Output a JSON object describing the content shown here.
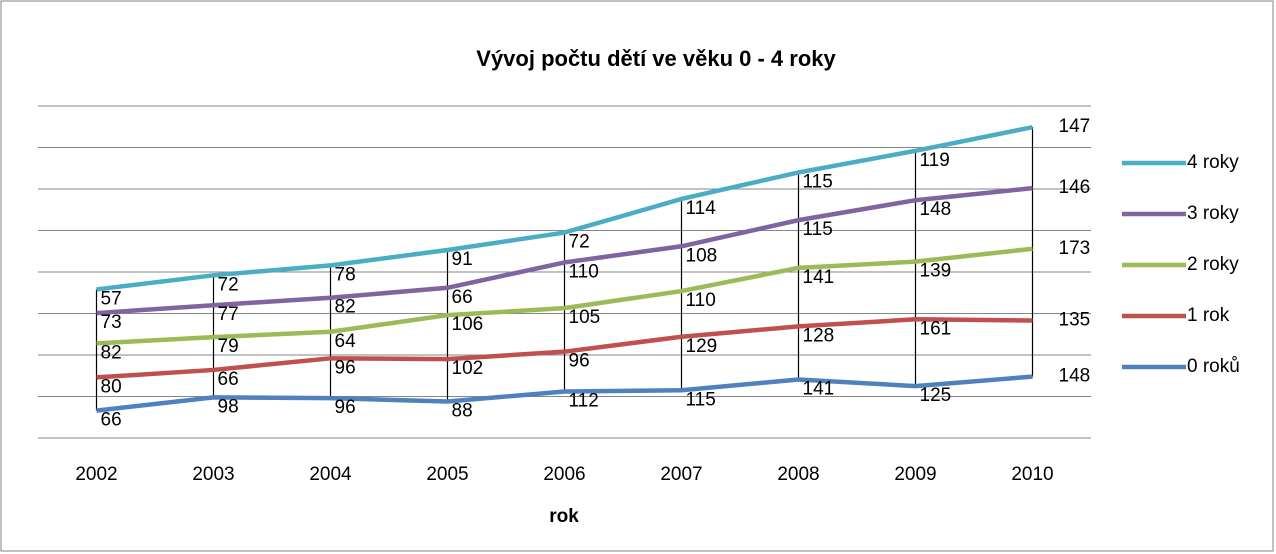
{
  "chart_data": {
    "type": "line",
    "stacked": true,
    "high_low_lines": true,
    "grid": true,
    "title": "Vývoj počtu dětí ve věku 0 - 4 roky",
    "x_label": "rok",
    "categories": [
      "2002",
      "2003",
      "2004",
      "2005",
      "2006",
      "2007",
      "2008",
      "2009",
      "2010"
    ],
    "ylim": [
      0,
      800
    ],
    "yticks": [
      0,
      100,
      200,
      300,
      400,
      500,
      600,
      700,
      800
    ],
    "series": [
      {
        "name": "0 roků",
        "color": "#4f81bd",
        "values": [
          66,
          98,
          96,
          88,
          112,
          115,
          141,
          125,
          148
        ]
      },
      {
        "name": "1 rok",
        "color": "#c0504d",
        "values": [
          80,
          66,
          96,
          102,
          96,
          129,
          128,
          161,
          135
        ]
      },
      {
        "name": "2 roky",
        "color": "#9bbb59",
        "values": [
          82,
          79,
          64,
          106,
          105,
          110,
          141,
          139,
          173
        ]
      },
      {
        "name": "3 roky",
        "color": "#8064a2",
        "values": [
          73,
          77,
          82,
          66,
          110,
          108,
          115,
          148,
          146
        ]
      },
      {
        "name": "4 roky",
        "color": "#4bacc6",
        "values": [
          57,
          72,
          78,
          91,
          72,
          114,
          115,
          119,
          147
        ]
      }
    ]
  }
}
